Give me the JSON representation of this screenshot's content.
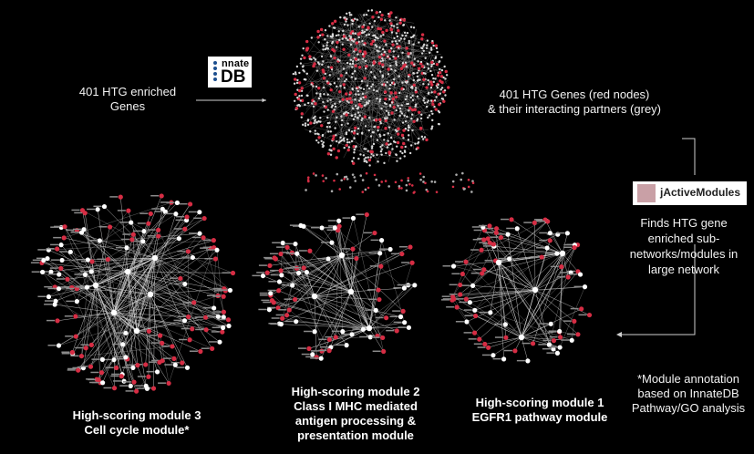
{
  "innatedb_logo": {
    "line1": "nnate",
    "line2": "DB"
  },
  "jactivemodules_logo": {
    "label": "jActiveModules"
  },
  "text": {
    "input_genes": [
      "401 HTG enriched",
      "Genes"
    ],
    "network_desc": [
      "401 HTG Genes (red nodes)",
      "& their interacting partners (grey)"
    ],
    "finds_desc": [
      "Finds HTG gene",
      "enriched sub-",
      "networks/modules in",
      "large network"
    ],
    "module3": [
      "High-scoring module 3",
      "Cell cycle module*"
    ],
    "module2": [
      "High-scoring module 2",
      "Class I MHC mediated",
      "antigen processing &",
      "presentation module"
    ],
    "module1": [
      "High-scoring module 1",
      "EGFR1 pathway module"
    ],
    "annotation_note": [
      "*Module annotation",
      "based on InnateDB",
      "Pathway/GO analysis"
    ]
  },
  "colors": {
    "background": "#000000",
    "red_node": "#d62d44",
    "grey_node": "#d8d8d8",
    "edge": "#cfcfcf",
    "text": "#f2f2f2"
  }
}
